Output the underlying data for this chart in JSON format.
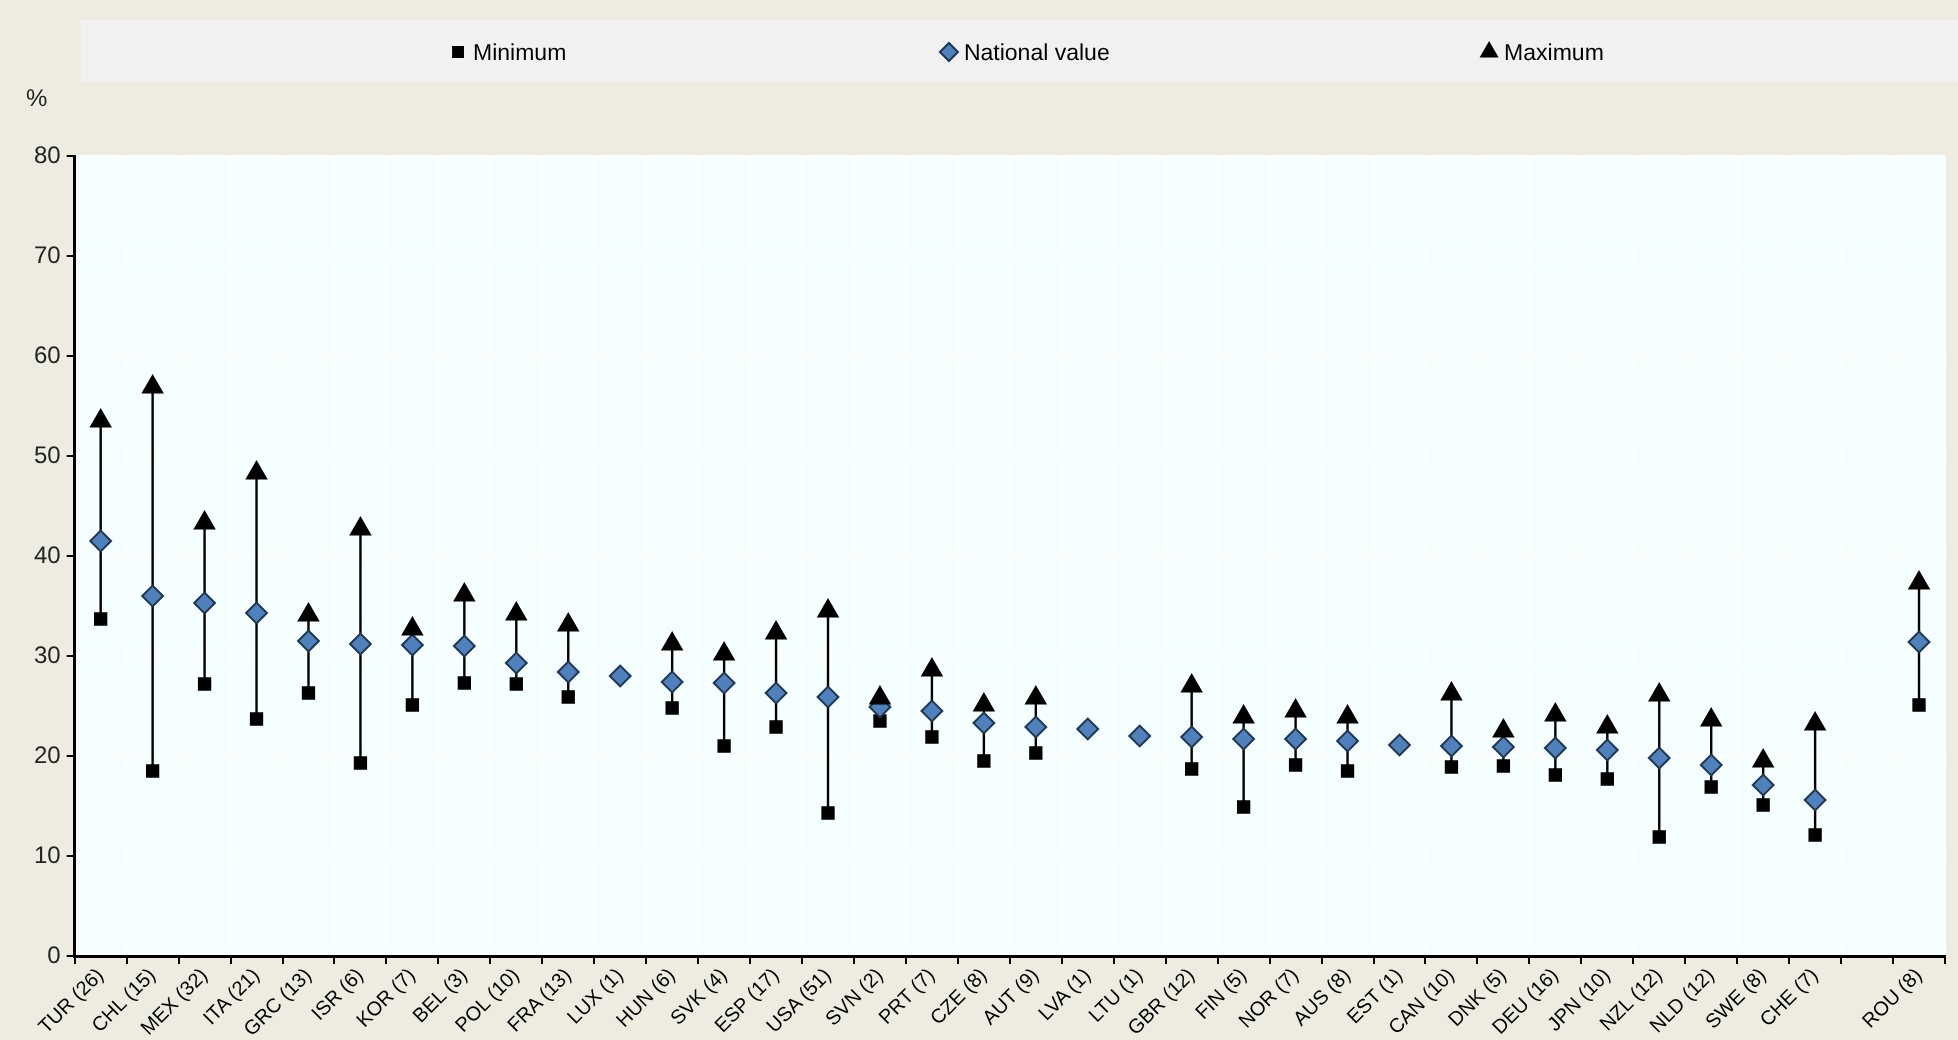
{
  "chart_data": {
    "type": "scatter",
    "ylabel": "%",
    "categories": [
      "TUR (26)",
      "CHL (15)",
      "MEX (32)",
      "ITA (21)",
      "GRC (13)",
      "ISR (6)",
      "KOR (7)",
      "BEL (3)",
      "POL (10)",
      "FRA (13)",
      "LUX (1)",
      "HUN (6)",
      "SVK (4)",
      "ESP (17)",
      "USA (51)",
      "SVN (2)",
      "PRT (7)",
      "CZE (8)",
      "AUT (9)",
      "LVA (1)",
      "LTU (1)",
      "GBR (12)",
      "FIN (5)",
      "NOR (7)",
      "AUS (8)",
      "EST (1)",
      "CAN (10)",
      "DNK (5)",
      "DEU (16)",
      "JPN (10)",
      "NZL (12)",
      "NLD (12)",
      "SWE (8)",
      "CHE (7)",
      null,
      "ROU (8)"
    ],
    "ylim": [
      0,
      80
    ],
    "yticks": [
      0,
      10,
      20,
      30,
      40,
      50,
      60,
      70,
      80
    ],
    "grid": true,
    "legend": "top",
    "series": [
      {
        "name": "Minimum",
        "color": "#000000",
        "marker": "square",
        "values": [
          33.7,
          18.5,
          27.2,
          23.7,
          26.3,
          19.3,
          25.1,
          27.3,
          27.2,
          25.9,
          null,
          24.8,
          21.0,
          22.9,
          14.3,
          23.5,
          21.9,
          19.5,
          20.3,
          null,
          null,
          18.7,
          14.9,
          19.1,
          18.5,
          null,
          18.9,
          19.0,
          18.1,
          17.7,
          11.9,
          16.9,
          15.1,
          12.1,
          null,
          25.1
        ]
      },
      {
        "name": "National value",
        "color": "#4f81bd",
        "marker": "diamond",
        "values": [
          41.5,
          36.0,
          35.3,
          34.3,
          31.5,
          31.2,
          31.1,
          31.0,
          29.3,
          28.4,
          28.0,
          27.4,
          27.3,
          26.3,
          25.9,
          24.9,
          24.5,
          23.3,
          22.9,
          22.7,
          22.0,
          21.9,
          21.7,
          21.7,
          21.5,
          21.1,
          21.0,
          20.9,
          20.8,
          20.6,
          19.8,
          19.1,
          17.1,
          15.6,
          null,
          31.4
        ]
      },
      {
        "name": "Maximum",
        "color": "#000000",
        "marker": "triangle",
        "values": [
          53.5,
          56.9,
          43.3,
          48.3,
          34.1,
          42.7,
          32.7,
          36.1,
          34.2,
          33.1,
          null,
          31.2,
          30.2,
          32.3,
          34.5,
          25.8,
          28.6,
          25.1,
          25.8,
          null,
          null,
          27.0,
          23.9,
          24.5,
          23.9,
          null,
          26.2,
          22.5,
          24.1,
          22.9,
          26.1,
          23.6,
          19.5,
          23.2,
          null,
          37.3
        ]
      }
    ]
  }
}
